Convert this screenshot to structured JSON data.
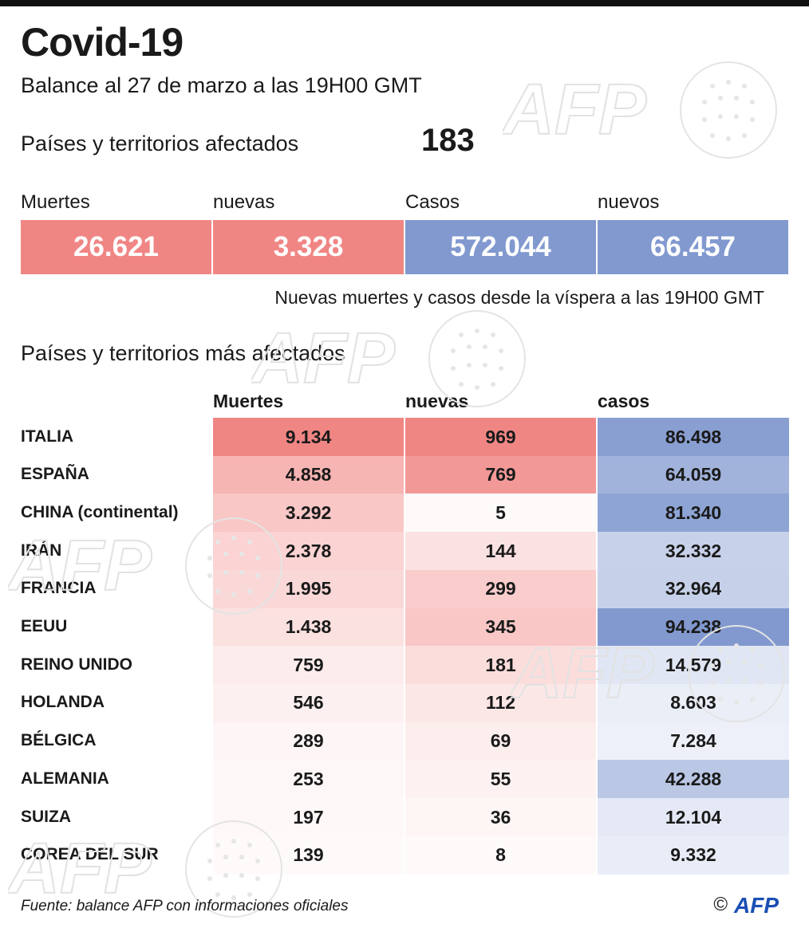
{
  "title": "Covid-19",
  "subtitle": "Balance al 27 de marzo a las 19H00 GMT",
  "affected": {
    "label": "Países y territorios afectados",
    "count": "183"
  },
  "summary": {
    "labels": [
      "Muertes",
      "nuevas",
      "Casos",
      "nuevos"
    ],
    "values": [
      "26.621",
      "3.328",
      "572.044",
      "66.457"
    ],
    "colors": [
      "#f08684",
      "#f08684",
      "#8199cf",
      "#8199cf"
    ]
  },
  "note": "Nuevas muertes y casos desde la víspera a las 19H00 GMT",
  "section_title": "Países y territorios más afectados",
  "chart_data": {
    "type": "table",
    "columns": [
      "Muertes",
      "nuevas",
      "casos"
    ],
    "rows": [
      {
        "country": "ITALIA",
        "muertes": "9.134",
        "nuevas": "969",
        "casos": "86.498"
      },
      {
        "country": "ESPAÑA",
        "muertes": "4.858",
        "nuevas": "769",
        "casos": "64.059"
      },
      {
        "country": "CHINA (continental)",
        "muertes": "3.292",
        "nuevas": "5",
        "casos": "81.340"
      },
      {
        "country": "IRÁN",
        "muertes": "2.378",
        "nuevas": "144",
        "casos": "32.332"
      },
      {
        "country": "FRANCIA",
        "muertes": "1.995",
        "nuevas": "299",
        "casos": "32.964"
      },
      {
        "country": "EEUU",
        "muertes": "1.438",
        "nuevas": "345",
        "casos": "94.238"
      },
      {
        "country": "REINO UNIDO",
        "muertes": "759",
        "nuevas": "181",
        "casos": "14.579"
      },
      {
        "country": "HOLANDA",
        "muertes": "546",
        "nuevas": "112",
        "casos": "8.603"
      },
      {
        "country": "BÉLGICA",
        "muertes": "289",
        "nuevas": "69",
        "casos": "7.284"
      },
      {
        "country": "ALEMANIA",
        "muertes": "253",
        "nuevas": "55",
        "casos": "42.288"
      },
      {
        "country": "SUIZA",
        "muertes": "197",
        "nuevas": "36",
        "casos": "12.104"
      },
      {
        "country": "COREA DEL SUR",
        "muertes": "139",
        "nuevas": "8",
        "casos": "9.332"
      }
    ],
    "colors": {
      "deaths": "#f08684",
      "cases": "#8199cf"
    }
  },
  "source": "Fuente: balance AFP con informaciones oficiales",
  "copyright": {
    "symbol": "©",
    "logo_text": "AFP",
    "logo_color": "#1a4fb4"
  },
  "watermark": {
    "text": "AFP",
    "icon": "afp-watermark-icon"
  }
}
